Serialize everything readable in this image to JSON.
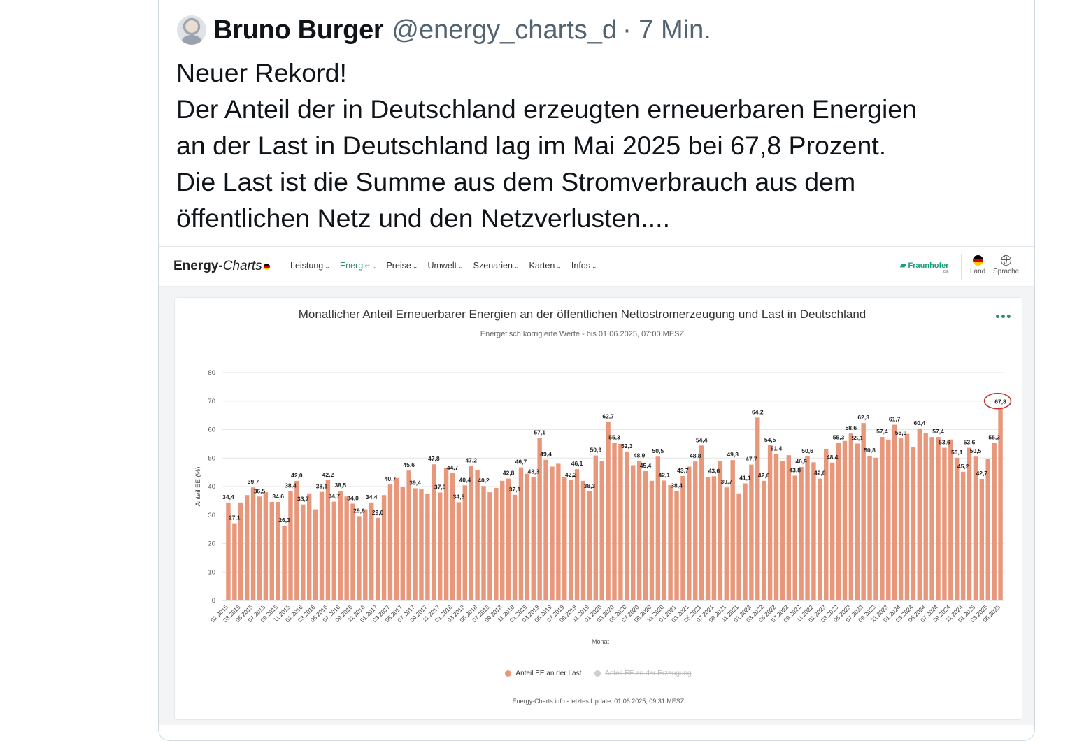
{
  "tweet": {
    "author_name": "Bruno Burger",
    "handle": "@energy_charts_d",
    "time": "· 7 Min.",
    "lines": [
      "Neuer Rekord!",
      "Der Anteil der in Deutschland erzeugten erneuerbaren Energien",
      "an der Last in Deutschland lag im Mai 2025 bei 67,8 Prozent.",
      "Die Last ist die Summe aus dem Stromverbrauch aus dem",
      "öffentlichen Netz und den Netzverlusten...."
    ]
  },
  "site": {
    "logo_main": "Energy-",
    "logo_italic": "Charts",
    "menu": [
      "Leistung",
      "Energie",
      "Preise",
      "Umwelt",
      "Szenarien",
      "Karten",
      "Infos"
    ],
    "active_menu": "Energie",
    "partner": "Fraunhofer",
    "partner_sub": "ISE",
    "land_label": "Land",
    "sprache_label": "Sprache",
    "accent_color": "#2e8b74"
  },
  "chart_data": {
    "type": "bar",
    "title": "Monatlicher Anteil Erneuerbarer Energien an der öffentlichen Nettostromerzeugung und Last in Deutschland",
    "subtitle": "Energetisch korrigierte Werte - bis 01.06.2025, 07:00 MESZ",
    "xlabel": "Monat",
    "ylabel": "Anteil EE (%)",
    "ylim": [
      0,
      80
    ],
    "yticks": [
      0,
      10,
      20,
      30,
      40,
      50,
      60,
      70,
      80
    ],
    "grid": true,
    "legend_position": "bottom",
    "bar_color": "#e8977a",
    "highlight_color": "#c0392b",
    "x_start": "01.2015",
    "x_tick_labels": [
      "01.2015",
      "03.2015",
      "05.2015",
      "07.2015",
      "09.2015",
      "11.2015",
      "01.2016",
      "03.2016",
      "05.2016",
      "07.2016",
      "09.2016",
      "11.2016",
      "01.2017",
      "03.2017",
      "05.2017",
      "07.2017",
      "09.2017",
      "11.2017",
      "01.2018",
      "03.2018",
      "05.2018",
      "07.2018",
      "09.2018",
      "11.2018",
      "01.2019",
      "03.2019",
      "05.2019",
      "07.2019",
      "09.2019",
      "11.2019",
      "01.2020",
      "03.2020",
      "05.2020",
      "07.2020",
      "09.2020",
      "11.2020",
      "01.2021",
      "03.2021",
      "05.2021",
      "07.2021",
      "09.2021",
      "11.2021",
      "01.2022",
      "03.2022",
      "05.2022",
      "07.2022",
      "09.2022",
      "11.2022",
      "01.2023",
      "03.2023",
      "05.2023",
      "07.2023",
      "09.2023",
      "11.2023",
      "01.2024",
      "03.2024",
      "05.2024",
      "07.2024",
      "09.2024",
      "11.2024",
      "01.2025",
      "03.2025",
      "05.2025"
    ],
    "series": [
      {
        "name": "Anteil EE an der Last",
        "visible": true,
        "values": [
          34.4,
          27.1,
          34.4,
          37.0,
          39.7,
          36.5,
          38.0,
          34.6,
          34.6,
          26.3,
          38.4,
          42.0,
          33.7,
          37.6,
          32.0,
          38.1,
          42.2,
          34.7,
          38.5,
          36.5,
          34.0,
          29.6,
          32.0,
          34.4,
          29.0,
          37.0,
          40.7,
          43.0,
          40.0,
          45.6,
          39.4,
          39.0,
          37.5,
          47.8,
          37.9,
          46.5,
          44.7,
          34.5,
          40.4,
          47.2,
          45.8,
          40.2,
          38.0,
          39.5,
          42.0,
          42.8,
          37.1,
          46.7,
          44.5,
          43.3,
          57.1,
          49.4,
          47.0,
          48.0,
          43.2,
          42.2,
          46.1,
          42.0,
          38.3,
          50.9,
          49.0,
          62.7,
          55.3,
          55.0,
          52.3,
          47.5,
          48.9,
          45.4,
          42.0,
          50.5,
          42.1,
          40.5,
          38.4,
          43.7,
          47.0,
          48.8,
          54.4,
          43.4,
          43.6,
          48.9,
          39.7,
          49.3,
          37.6,
          41.1,
          47.7,
          64.2,
          42.0,
          54.5,
          51.4,
          49.0,
          51.0,
          43.8,
          46.9,
          50.6,
          48.5,
          42.8,
          53.2,
          48.4,
          55.3,
          56.0,
          58.6,
          55.1,
          62.3,
          50.8,
          50.1,
          57.4,
          56.5,
          61.7,
          56.9,
          58.5,
          54.0,
          60.4,
          58.7,
          57.4,
          57.4,
          53.6,
          56.5,
          50.1,
          45.2,
          53.6,
          50.5,
          42.7,
          49.7,
          55.3,
          67.8
        ]
      },
      {
        "name": "Anteil EE an der Erzeugung",
        "visible": false
      }
    ],
    "data_labels": [
      {
        "x": "01.2015",
        "text": "34,4"
      },
      {
        "x": "02.2015",
        "text": "27,1"
      },
      {
        "x": "05.2015",
        "text": "39,7"
      },
      {
        "x": "06.2015",
        "text": "36,5"
      },
      {
        "x": "09.2015",
        "text": "34,6"
      },
      {
        "x": "10.2015",
        "text": "26,3"
      },
      {
        "x": "11.2015",
        "text": "38,4"
      },
      {
        "x": "12.2015",
        "text": "42,0"
      },
      {
        "x": "01.2016",
        "text": "33,7"
      },
      {
        "x": "04.2016",
        "text": "38,1"
      },
      {
        "x": "05.2016",
        "text": "42,2"
      },
      {
        "x": "06.2016",
        "text": "34,7"
      },
      {
        "x": "07.2016",
        "text": "38,5"
      },
      {
        "x": "09.2016",
        "text": "34,0"
      },
      {
        "x": "10.2016",
        "text": "29,6"
      },
      {
        "x": "12.2016",
        "text": "34,4"
      },
      {
        "x": "01.2017",
        "text": "29,0"
      },
      {
        "x": "03.2017",
        "text": "40,7"
      },
      {
        "x": "06.2017",
        "text": "45,6"
      },
      {
        "x": "07.2017",
        "text": "39,4"
      },
      {
        "x": "10.2017",
        "text": "47,8"
      },
      {
        "x": "11.2017",
        "text": "37,9"
      },
      {
        "x": "01.2018",
        "text": "44,7"
      },
      {
        "x": "02.2018",
        "text": "34,5"
      },
      {
        "x": "03.2018",
        "text": "40,4"
      },
      {
        "x": "04.2018",
        "text": "47,2"
      },
      {
        "x": "06.2018",
        "text": "40,2"
      },
      {
        "x": "10.2018",
        "text": "42,8"
      },
      {
        "x": "11.2018",
        "text": "37,1"
      },
      {
        "x": "12.2018",
        "text": "46,7"
      },
      {
        "x": "02.2019",
        "text": "43,3"
      },
      {
        "x": "03.2019",
        "text": "57,1"
      },
      {
        "x": "04.2019",
        "text": "49,4"
      },
      {
        "x": "08.2019",
        "text": "42,2"
      },
      {
        "x": "09.2019",
        "text": "46,1"
      },
      {
        "x": "11.2019",
        "text": "38,3"
      },
      {
        "x": "12.2019",
        "text": "50,9"
      },
      {
        "x": "02.2020",
        "text": "62,7"
      },
      {
        "x": "03.2020",
        "text": "55,3"
      },
      {
        "x": "05.2020",
        "text": "52,3"
      },
      {
        "x": "07.2020",
        "text": "48,9"
      },
      {
        "x": "08.2020",
        "text": "45,4"
      },
      {
        "x": "10.2020",
        "text": "50,5"
      },
      {
        "x": "11.2020",
        "text": "42,1"
      },
      {
        "x": "01.2021",
        "text": "38,4"
      },
      {
        "x": "02.2021",
        "text": "43,7"
      },
      {
        "x": "04.2021",
        "text": "48,8"
      },
      {
        "x": "05.2021",
        "text": "54,4"
      },
      {
        "x": "07.2021",
        "text": "43,6"
      },
      {
        "x": "09.2021",
        "text": "39,7"
      },
      {
        "x": "10.2021",
        "text": "49,3"
      },
      {
        "x": "12.2021",
        "text": "41,1"
      },
      {
        "x": "01.2022",
        "text": "47,7"
      },
      {
        "x": "02.2022",
        "text": "64,2"
      },
      {
        "x": "03.2022",
        "text": "42,0"
      },
      {
        "x": "04.2022",
        "text": "54,5"
      },
      {
        "x": "05.2022",
        "text": "51,4"
      },
      {
        "x": "08.2022",
        "text": "43,8"
      },
      {
        "x": "09.2022",
        "text": "46,9"
      },
      {
        "x": "10.2022",
        "text": "50,6"
      },
      {
        "x": "12.2022",
        "text": "42,8"
      },
      {
        "x": "02.2023",
        "text": "48,4"
      },
      {
        "x": "03.2023",
        "text": "55,3"
      },
      {
        "x": "05.2023",
        "text": "58,6"
      },
      {
        "x": "06.2023",
        "text": "55,1"
      },
      {
        "x": "07.2023",
        "text": "62,3"
      },
      {
        "x": "08.2023",
        "text": "50,8"
      },
      {
        "x": "10.2023",
        "text": "57,4"
      },
      {
        "x": "12.2023",
        "text": "61,7"
      },
      {
        "x": "01.2024",
        "text": "56,9"
      },
      {
        "x": "04.2024",
        "text": "60,4"
      },
      {
        "x": "07.2024",
        "text": "57,4"
      },
      {
        "x": "08.2024",
        "text": "53,6"
      },
      {
        "x": "10.2024",
        "text": "50,1"
      },
      {
        "x": "11.2024",
        "text": "45,2"
      },
      {
        "x": "12.2024",
        "text": "53,6"
      },
      {
        "x": "01.2025",
        "text": "50,5"
      },
      {
        "x": "02.2025",
        "text": "42,7"
      },
      {
        "x": "04.2025",
        "text": "55,3"
      },
      {
        "x": "05.2025",
        "text": "67,8"
      }
    ],
    "highlighted": "05.2025",
    "footer": "Energy-Charts.info - letztes Update: 01.06.2025, 09:31 MESZ"
  }
}
